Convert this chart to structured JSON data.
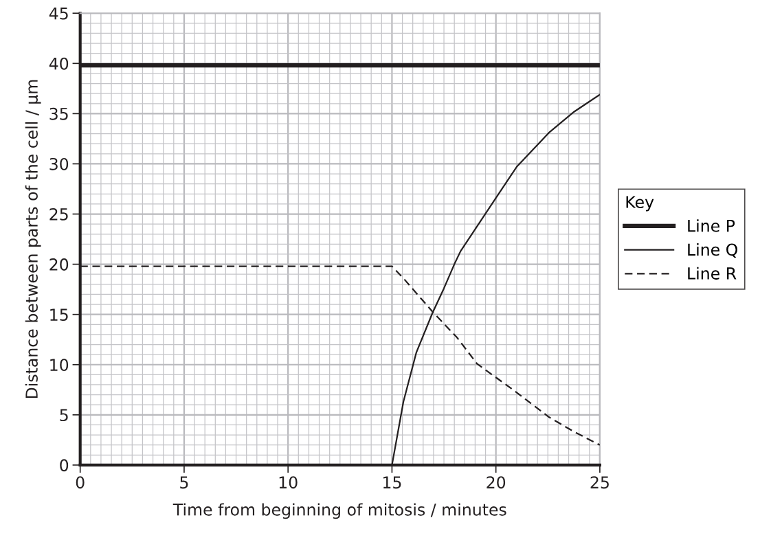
{
  "chart_data": {
    "type": "line",
    "xlabel": "Time from beginning of mitosis / minutes",
    "ylabel": "Distance between parts of the cell / μm",
    "legend_title": "Key",
    "legend": "right",
    "xlim": [
      0,
      25
    ],
    "ylim": [
      0,
      45
    ],
    "xticks": [
      0,
      5,
      10,
      15,
      20,
      25
    ],
    "yticks": [
      0,
      5,
      10,
      15,
      20,
      25,
      30,
      35,
      40,
      45
    ],
    "grid": true,
    "marker": "none",
    "series": [
      {
        "name": "Line P",
        "color": "#231f20",
        "line_style": "solid",
        "x": [
          0,
          25
        ],
        "values": [
          39.8,
          39.8
        ]
      },
      {
        "name": "Line Q",
        "color": "#231f20",
        "line_style": "solid",
        "x": [
          15,
          15.55,
          16.17,
          16.96,
          17.5,
          18,
          18.3,
          20,
          21,
          22.55,
          23.77,
          25
        ],
        "values": [
          0,
          6.3,
          11.2,
          15.2,
          17.6,
          20,
          21.3,
          26.6,
          29.7,
          33.1,
          35.2,
          36.9
        ]
      },
      {
        "name": "Line R",
        "color": "#231f20",
        "line_style": "dashed",
        "x": [
          0,
          15,
          15.55,
          16.96,
          18.13,
          19.1,
          20.83,
          22.55,
          23.77,
          25
        ],
        "values": [
          19.8,
          19.8,
          18.6,
          15.25,
          12.7,
          10.07,
          7.49,
          4.78,
          3.3,
          2.0
        ]
      }
    ]
  }
}
